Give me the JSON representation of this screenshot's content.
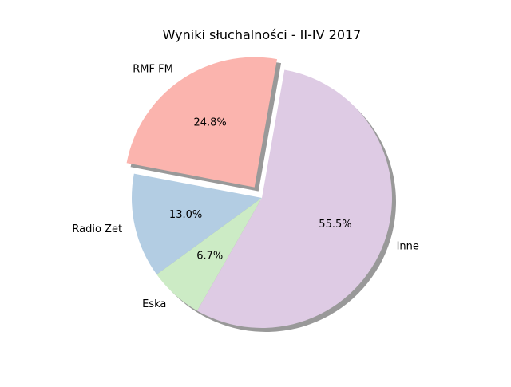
{
  "chart_data": {
    "type": "pie",
    "title": "Wyniki słuchalności - II-IV 2017",
    "categories": [
      "RMF FM",
      "Radio Zet",
      "Eska",
      "Inne"
    ],
    "values": [
      24.8,
      13.0,
      6.7,
      55.5
    ],
    "value_labels": [
      "24.8%",
      "13.0%",
      "6.7%",
      "55.5%"
    ],
    "colors": [
      "#fbb4ae",
      "#b3cde3",
      "#ccebc5",
      "#decbe4"
    ],
    "exploded": [
      "RMF FM"
    ],
    "shadow": true,
    "start_angle_deg": 80,
    "direction": "counterclockwise"
  }
}
